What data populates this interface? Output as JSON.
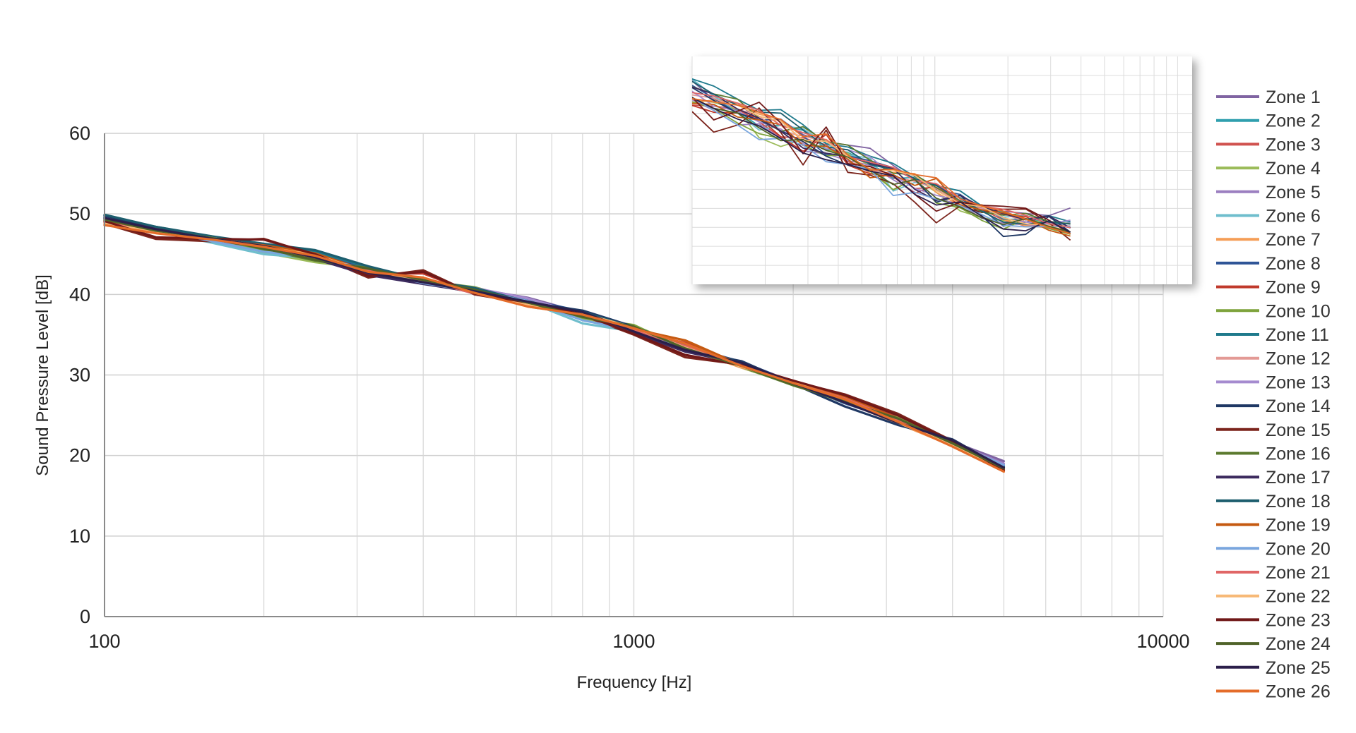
{
  "chart_data": {
    "type": "line",
    "title": "",
    "xlabel": "Frequency [Hz]",
    "ylabel": "Sound Pressure Level [dB]",
    "xscale": "log",
    "xlim": [
      100,
      10000
    ],
    "ylim": [
      0,
      60
    ],
    "x_ticks": [
      "100",
      "1000",
      "10000"
    ],
    "y_ticks": [
      "0",
      "10",
      "20",
      "30",
      "40",
      "50",
      "60"
    ],
    "grid": true,
    "legend_position": "right",
    "x": [
      100,
      125,
      160,
      200,
      250,
      315,
      400,
      500,
      630,
      800,
      1000,
      1250,
      1600,
      2000,
      2500,
      3150,
      4000,
      5000
    ],
    "base_values": [
      49.2,
      47.9,
      46.8,
      45.8,
      44.6,
      43.0,
      41.7,
      40.4,
      39.0,
      37.5,
      35.6,
      33.4,
      31.2,
      29.0,
      26.9,
      24.3,
      21.4,
      18.4
    ],
    "zones": [
      {
        "name": "Zone 1",
        "color": "#8064a2",
        "offsets": [
          0.3,
          -0.2,
          0.1,
          -0.3,
          0.2,
          -0.1,
          0.0,
          0.3,
          0.6,
          0.2,
          -0.1,
          0.1,
          -0.2,
          0.0,
          0.1,
          0.2,
          0.3,
          0.9
        ]
      },
      {
        "name": "Zone 2",
        "color": "#2f9fae",
        "offsets": [
          0.6,
          0.2,
          -0.1,
          -0.4,
          0.1,
          0.3,
          -0.2,
          0.1,
          0.0,
          -0.3,
          0.2,
          0.0,
          0.1,
          -0.1,
          0.2,
          0.0,
          0.1,
          0.0
        ]
      },
      {
        "name": "Zone 3",
        "color": "#d0524f",
        "offsets": [
          -0.5,
          -0.1,
          0.2,
          0.0,
          -0.3,
          0.1,
          0.2,
          -0.2,
          -0.1,
          0.0,
          -0.2,
          0.3,
          0.0,
          0.1,
          -0.1,
          -0.2,
          0.0,
          -0.2
        ]
      },
      {
        "name": "Zone 4",
        "color": "#9bbb59",
        "offsets": [
          0.0,
          0.3,
          0.4,
          -0.6,
          -0.6,
          0.2,
          0.1,
          0.4,
          0.2,
          -0.6,
          0.5,
          0.2,
          -0.3,
          -0.2,
          0.0,
          0.3,
          0.2,
          0.3
        ]
      },
      {
        "name": "Zone 5",
        "color": "#9b7fc0",
        "offsets": [
          0.2,
          0.1,
          -0.2,
          0.3,
          0.0,
          -0.2,
          0.1,
          0.2,
          0.4,
          0.1,
          -0.1,
          0.0,
          0.2,
          -0.1,
          0.0,
          0.1,
          0.2,
          0.6
        ]
      },
      {
        "name": "Zone 6",
        "color": "#6fbecd",
        "offsets": [
          0.4,
          0.0,
          -0.4,
          -0.8,
          -0.1,
          0.2,
          -0.1,
          -0.2,
          0.1,
          -1.1,
          -0.2,
          0.1,
          0.3,
          0.0,
          -0.2,
          0.1,
          0.0,
          0.2
        ]
      },
      {
        "name": "Zone 7",
        "color": "#f59d56",
        "offsets": [
          -0.6,
          0.0,
          0.3,
          0.2,
          0.4,
          -0.3,
          0.3,
          -0.1,
          -0.5,
          0.0,
          0.4,
          -0.1,
          -0.3,
          0.2,
          -0.2,
          -0.3,
          -0.2,
          -0.3
        ]
      },
      {
        "name": "Zone 8",
        "color": "#2f5597",
        "offsets": [
          0.5,
          0.3,
          0.0,
          0.1,
          0.6,
          0.2,
          -0.3,
          0.1,
          0.3,
          0.4,
          0.3,
          0.2,
          0.4,
          0.1,
          -0.4,
          0.0,
          0.5,
          0.1
        ]
      },
      {
        "name": "Zone 9",
        "color": "#c0392b",
        "offsets": [
          -0.3,
          -0.2,
          0.2,
          0.4,
          -0.1,
          -0.4,
          0.9,
          -0.2,
          -0.2,
          0.1,
          -0.3,
          0.6,
          -0.1,
          0.3,
          0.3,
          0.4,
          0.0,
          -0.1
        ]
      },
      {
        "name": "Zone 10",
        "color": "#7ea33c",
        "offsets": [
          0.1,
          0.2,
          -0.1,
          -0.2,
          0.0,
          0.1,
          0.0,
          0.5,
          0.1,
          -0.4,
          0.6,
          -0.2,
          0.0,
          -0.2,
          -0.3,
          0.4,
          0.1,
          0.0
        ]
      },
      {
        "name": "Zone 11",
        "color": "#1f7a8c",
        "offsets": [
          0.4,
          0.5,
          0.3,
          0.2,
          0.7,
          0.4,
          -0.1,
          0.2,
          0.2,
          0.3,
          0.1,
          0.1,
          0.3,
          0.0,
          -0.3,
          -0.1,
          0.3,
          0.2
        ]
      },
      {
        "name": "Zone 12",
        "color": "#e39a95",
        "offsets": [
          -0.2,
          0.1,
          0.0,
          0.1,
          -0.2,
          0.0,
          0.2,
          -0.1,
          -0.3,
          -0.2,
          0.0,
          0.1,
          -0.2,
          0.0,
          0.1,
          -0.1,
          -0.1,
          0.1
        ]
      },
      {
        "name": "Zone 13",
        "color": "#a58bcf",
        "offsets": [
          0.2,
          -0.1,
          0.1,
          0.0,
          0.1,
          -0.2,
          0.0,
          0.4,
          0.5,
          0.0,
          -0.2,
          -0.1,
          0.1,
          0.2,
          0.0,
          0.0,
          0.1,
          0.5
        ]
      },
      {
        "name": "Zone 14",
        "color": "#1f3864",
        "offsets": [
          0.6,
          0.4,
          0.2,
          0.3,
          0.2,
          0.1,
          -0.2,
          -0.2,
          0.0,
          0.5,
          0.4,
          -0.3,
          0.5,
          -0.1,
          -0.8,
          -0.5,
          0.6,
          0.0
        ]
      },
      {
        "name": "Zone 15",
        "color": "#7b241c",
        "offsets": [
          -0.4,
          -1.0,
          -0.2,
          1.1,
          0.3,
          -0.9,
          1.3,
          -0.4,
          -0.1,
          -0.1,
          -0.6,
          -1.2,
          0.1,
          0.2,
          0.7,
          0.9,
          0.4,
          -0.3
        ]
      },
      {
        "name": "Zone 16",
        "color": "#5b7a2e",
        "offsets": [
          0.0,
          0.1,
          0.3,
          -0.2,
          -0.4,
          0.3,
          0.0,
          0.3,
          0.0,
          -0.2,
          0.2,
          0.0,
          -0.2,
          -0.3,
          -0.1,
          0.2,
          0.0,
          0.1
        ]
      },
      {
        "name": "Zone 17",
        "color": "#3c2a5e",
        "offsets": [
          0.2,
          0.3,
          0.0,
          0.0,
          -0.2,
          -0.6,
          -0.4,
          -0.1,
          0.0,
          0.2,
          -0.4,
          -0.5,
          0.2,
          0.1,
          0.1,
          0.0,
          0.4,
          0.0
        ]
      },
      {
        "name": "Zone 18",
        "color": "#1d5e6e",
        "offsets": [
          0.7,
          0.5,
          0.4,
          0.5,
          0.9,
          0.5,
          0.1,
          0.4,
          0.1,
          0.3,
          0.3,
          0.4,
          0.2,
          0.0,
          -0.2,
          -0.1,
          0.2,
          0.3
        ]
      },
      {
        "name": "Zone 19",
        "color": "#c55a11",
        "offsets": [
          -0.2,
          0.2,
          0.0,
          0.3,
          0.5,
          -0.1,
          0.3,
          0.1,
          -0.4,
          0.2,
          0.1,
          0.9,
          0.0,
          0.2,
          0.4,
          0.3,
          -0.1,
          -0.2
        ]
      },
      {
        "name": "Zone 20",
        "color": "#7aa6de",
        "offsets": [
          0.3,
          0.1,
          -0.2,
          -0.5,
          0.0,
          0.1,
          -0.3,
          0.0,
          0.2,
          -0.7,
          -0.1,
          0.0,
          0.1,
          0.1,
          -0.1,
          0.0,
          0.2,
          0.4
        ]
      },
      {
        "name": "Zone 21",
        "color": "#e06666",
        "offsets": [
          -0.3,
          0.0,
          0.1,
          0.2,
          -0.1,
          0.0,
          0.1,
          -0.3,
          -0.1,
          0.1,
          -0.1,
          0.2,
          -0.1,
          0.0,
          0.2,
          0.1,
          -0.1,
          -0.1
        ]
      },
      {
        "name": "Zone 22",
        "color": "#f7b977",
        "offsets": [
          -0.4,
          -0.1,
          0.2,
          0.1,
          0.3,
          -0.2,
          0.2,
          -0.1,
          -0.3,
          0.1,
          0.3,
          0.0,
          -0.2,
          0.1,
          -0.1,
          -0.2,
          -0.1,
          -0.2
        ]
      },
      {
        "name": "Zone 23",
        "color": "#701818",
        "offsets": [
          -0.1,
          -0.8,
          0.1,
          1.0,
          0.4,
          -0.7,
          1.1,
          -0.3,
          0.0,
          0.0,
          -0.5,
          -0.9,
          0.0,
          0.3,
          0.6,
          0.7,
          0.3,
          -0.2
        ]
      },
      {
        "name": "Zone 24",
        "color": "#4f6228",
        "offsets": [
          0.1,
          0.0,
          0.2,
          -0.1,
          -0.3,
          0.2,
          0.1,
          0.2,
          0.0,
          -0.3,
          0.4,
          -0.1,
          -0.1,
          -0.2,
          -0.2,
          0.3,
          0.1,
          0.0
        ]
      },
      {
        "name": "Zone 25",
        "color": "#2b1f4a",
        "offsets": [
          0.3,
          0.2,
          0.1,
          0.2,
          0.0,
          -0.3,
          -0.2,
          0.0,
          0.1,
          0.3,
          -0.2,
          -0.3,
          0.3,
          0.0,
          -0.3,
          -0.2,
          0.5,
          0.1
        ]
      },
      {
        "name": "Zone 26",
        "color": "#e46c2a",
        "offsets": [
          -0.6,
          -0.3,
          0.0,
          0.1,
          0.2,
          -0.2,
          0.4,
          -0.2,
          -0.5,
          0.0,
          0.2,
          0.5,
          -0.1,
          0.0,
          0.1,
          -0.1,
          -0.3,
          -0.4
        ]
      }
    ],
    "inset": {
      "note": "enlarged view of same 26 zone curves, no axis labels",
      "grid": true
    }
  }
}
